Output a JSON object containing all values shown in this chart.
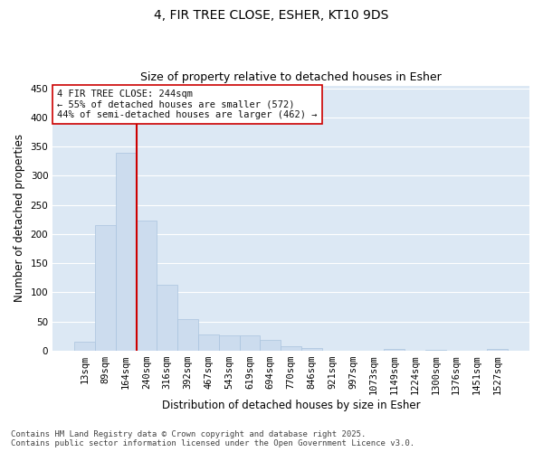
{
  "title": "4, FIR TREE CLOSE, ESHER, KT10 9DS",
  "subtitle": "Size of property relative to detached houses in Esher",
  "xlabel": "Distribution of detached houses by size in Esher",
  "ylabel": "Number of detached properties",
  "categories": [
    "13sqm",
    "89sqm",
    "164sqm",
    "240sqm",
    "316sqm",
    "392sqm",
    "467sqm",
    "543sqm",
    "619sqm",
    "694sqm",
    "770sqm",
    "846sqm",
    "921sqm",
    "997sqm",
    "1073sqm",
    "1149sqm",
    "1224sqm",
    "1300sqm",
    "1376sqm",
    "1451sqm",
    "1527sqm"
  ],
  "values": [
    16,
    216,
    340,
    223,
    113,
    54,
    27,
    26,
    26,
    18,
    8,
    5,
    0,
    0,
    0,
    3,
    0,
    2,
    0,
    0,
    3
  ],
  "bar_color": "#ccdcee",
  "bar_edge_color": "#aac4de",
  "vline_color": "#cc0000",
  "vline_x_index": 3,
  "annotation_text": "4 FIR TREE CLOSE: 244sqm\n← 55% of detached houses are smaller (572)\n44% of semi-detached houses are larger (462) →",
  "annotation_box_color": "#ffffff",
  "annotation_box_edge": "#cc0000",
  "ylim": [
    0,
    455
  ],
  "yticks": [
    0,
    50,
    100,
    150,
    200,
    250,
    300,
    350,
    400,
    450
  ],
  "fig_background_color": "#ffffff",
  "plot_background": "#dce8f4",
  "grid_color": "#ffffff",
  "footnote": "Contains HM Land Registry data © Crown copyright and database right 2025.\nContains public sector information licensed under the Open Government Licence v3.0.",
  "title_fontsize": 10,
  "subtitle_fontsize": 9,
  "xlabel_fontsize": 8.5,
  "ylabel_fontsize": 8.5,
  "tick_fontsize": 7.5,
  "annotation_fontsize": 7.5,
  "footnote_fontsize": 6.5
}
